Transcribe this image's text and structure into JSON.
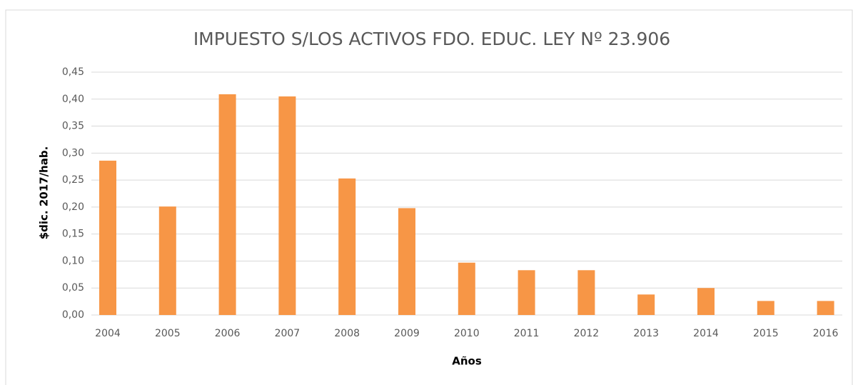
{
  "chart_data": {
    "type": "bar",
    "title": "IMPUESTO S/LOS ACTIVOS FDO. EDUC. LEY Nº 23.906",
    "x_label": "Años",
    "y_label": "$dic. 2017/hab.",
    "categories": [
      "2004",
      "2005",
      "2006",
      "2007",
      "2008",
      "2009",
      "2010",
      "2011",
      "2012",
      "2013",
      "2014",
      "2015",
      "2016"
    ],
    "values": [
      0.286,
      0.201,
      0.409,
      0.405,
      0.253,
      0.198,
      0.097,
      0.083,
      0.083,
      0.038,
      0.05,
      0.026,
      0.026
    ],
    "color": "#f79646",
    "ylim": [
      0,
      0.45
    ],
    "yticks": [
      {
        "value": 0,
        "label": "0,00"
      },
      {
        "value": 0.05,
        "label": "0,05"
      },
      {
        "value": 0.1,
        "label": "0,10"
      },
      {
        "value": 0.15,
        "label": "0,15"
      },
      {
        "value": 0.2,
        "label": "0,20"
      },
      {
        "value": 0.25,
        "label": "0,25"
      },
      {
        "value": 0.3,
        "label": "0,30"
      },
      {
        "value": 0.35,
        "label": "0,35"
      },
      {
        "value": 0.4,
        "label": "0,40"
      },
      {
        "value": 0.45,
        "label": "0,45"
      }
    ],
    "grid": true
  }
}
